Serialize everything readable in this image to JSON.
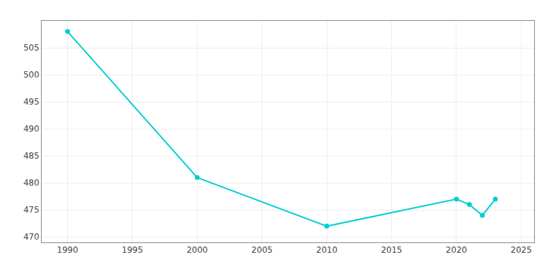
{
  "chart_data": {
    "type": "line",
    "x": [
      1990,
      2000,
      2010,
      2020,
      2021,
      2022,
      2023
    ],
    "values": [
      508,
      481,
      472,
      477,
      476,
      474,
      477
    ],
    "color": "#00CED1",
    "marker": "circle",
    "xlim": [
      1988,
      2026
    ],
    "ylim": [
      469,
      510
    ],
    "xticks": [
      1990,
      1995,
      2000,
      2005,
      2010,
      2015,
      2020,
      2025
    ],
    "yticks": [
      470,
      475,
      480,
      485,
      490,
      495,
      500,
      505
    ],
    "grid": true
  }
}
